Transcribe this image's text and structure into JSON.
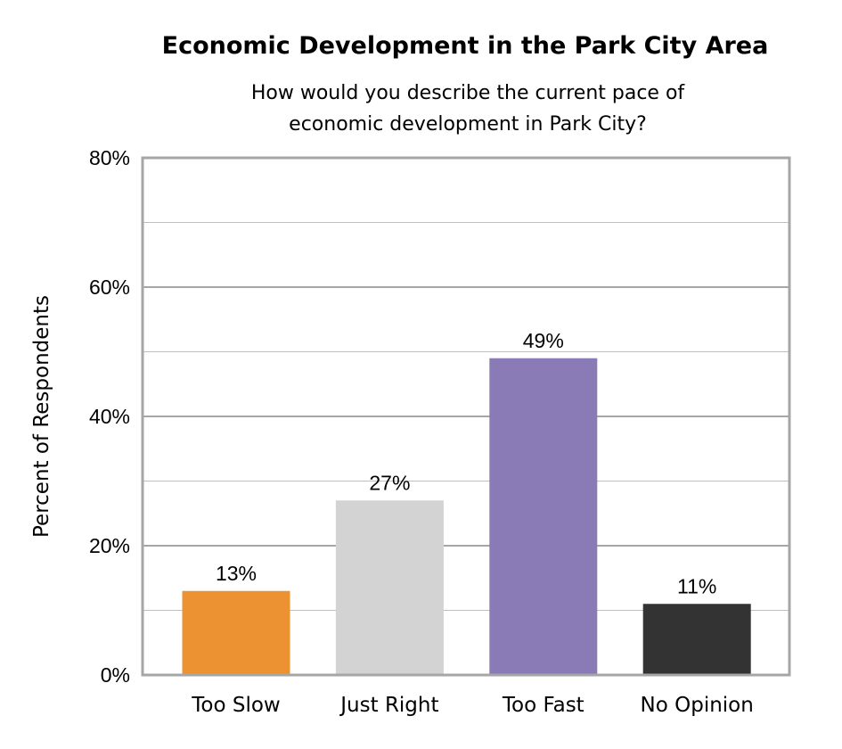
{
  "chart_data": {
    "type": "bar",
    "title": "Economic Development in the Park City Area",
    "subtitle": [
      "How would you describe the current pace of",
      "economic development in Park City?"
    ],
    "xlabel": "",
    "ylabel": "Percent of Respondents",
    "ylim": [
      0,
      80
    ],
    "yticks": [
      0,
      20,
      40,
      60,
      80
    ],
    "ytick_labels": [
      "0%",
      "20%",
      "40%",
      "60%",
      "80%"
    ],
    "grid": true,
    "categories": [
      "Too Slow",
      "Just Right",
      "Too Fast",
      "No Opinion"
    ],
    "values": [
      13,
      27,
      49,
      11
    ],
    "data_labels": [
      "13%",
      "27%",
      "49%",
      "11%"
    ],
    "colors": [
      "#ED9233",
      "#D3D3D3",
      "#8A7BB7",
      "#333333"
    ]
  }
}
